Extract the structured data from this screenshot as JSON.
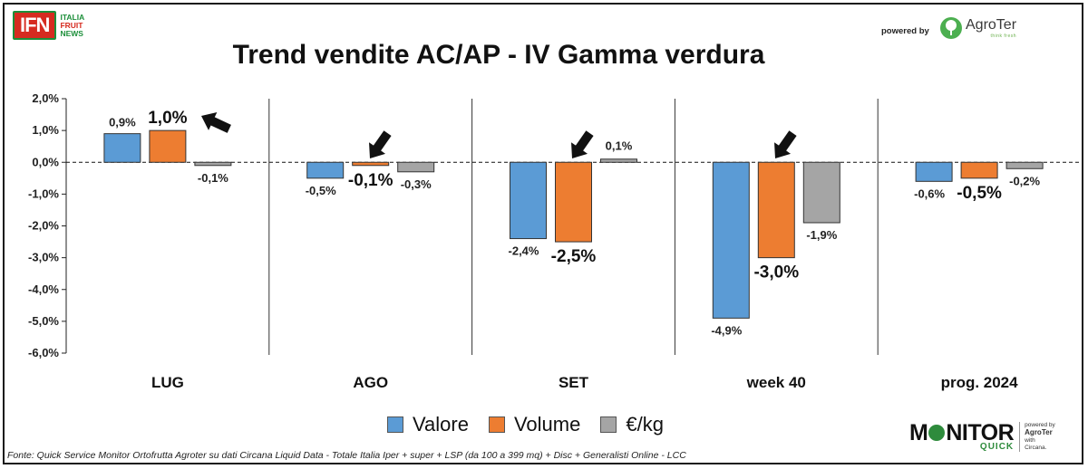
{
  "logos": {
    "ifn_mark": "IFN",
    "ifn_lines": [
      "ITALIA",
      "FRUIT",
      "NEWS"
    ],
    "powered_by": "powered by",
    "agroter_name": "AgroTer",
    "agroter_tagline": "think fresh",
    "monitor_word_1": "M",
    "monitor_word_2": "NITOR",
    "monitor_quick": "QUICK",
    "monitor_side_1": "powered by",
    "monitor_side_2": "AgroTer",
    "monitor_side_3": "with",
    "monitor_side_4": "Circana."
  },
  "source_note": "Fonte: Quick Service Monitor Ortofrutta Agroter su dati Circana Liquid Data - Totale Italia Iper + super + LSP (da 100 a 399 mq) + Disc + Generalisti Online - LCC",
  "colors": {
    "valore": "#5b9bd5",
    "volume": "#ed7d31",
    "eurokg": "#a5a5a5",
    "arrow": "#111111"
  },
  "chart_data": {
    "type": "bar",
    "title": "Trend vendite AC/AP - IV Gamma verdura",
    "xlabel": "",
    "ylabel": "",
    "ylim": [
      -6,
      2
    ],
    "yticks": [
      "2,0%",
      "1,0%",
      "0,0%",
      "-1,0%",
      "-2,0%",
      "-3,0%",
      "-4,0%",
      "-5,0%",
      "-6,0%"
    ],
    "ytick_values": [
      2,
      1,
      0,
      -1,
      -2,
      -3,
      -4,
      -5,
      -6
    ],
    "categories": [
      "LUG",
      "AGO",
      "SET",
      "week 40",
      "prog. 2024"
    ],
    "series": [
      {
        "name": "Valore",
        "values": [
          0.9,
          -0.5,
          -2.4,
          -4.9,
          -0.6
        ],
        "labels": [
          "0,9%",
          "-0,5%",
          "-2,4%",
          "-4,9%",
          "-0,6%"
        ]
      },
      {
        "name": "Volume",
        "values": [
          1.0,
          -0.1,
          -2.5,
          -3.0,
          -0.5
        ],
        "labels": [
          "1,0%",
          "-0,1%",
          "-2,5%",
          "-3,0%",
          "-0,5%"
        ]
      },
      {
        "name": "€/kg",
        "values": [
          -0.1,
          -0.3,
          0.1,
          -1.9,
          -0.2
        ],
        "labels": [
          "-0,1%",
          "-0,3%",
          "0,1%",
          "-1,9%",
          "-0,2%"
        ]
      }
    ],
    "highlighted_series": "Volume",
    "zero_line": "dashed",
    "legend_position": "bottom",
    "arrows": "point at Volume bar in LUG, AGO, SET, week 40"
  }
}
